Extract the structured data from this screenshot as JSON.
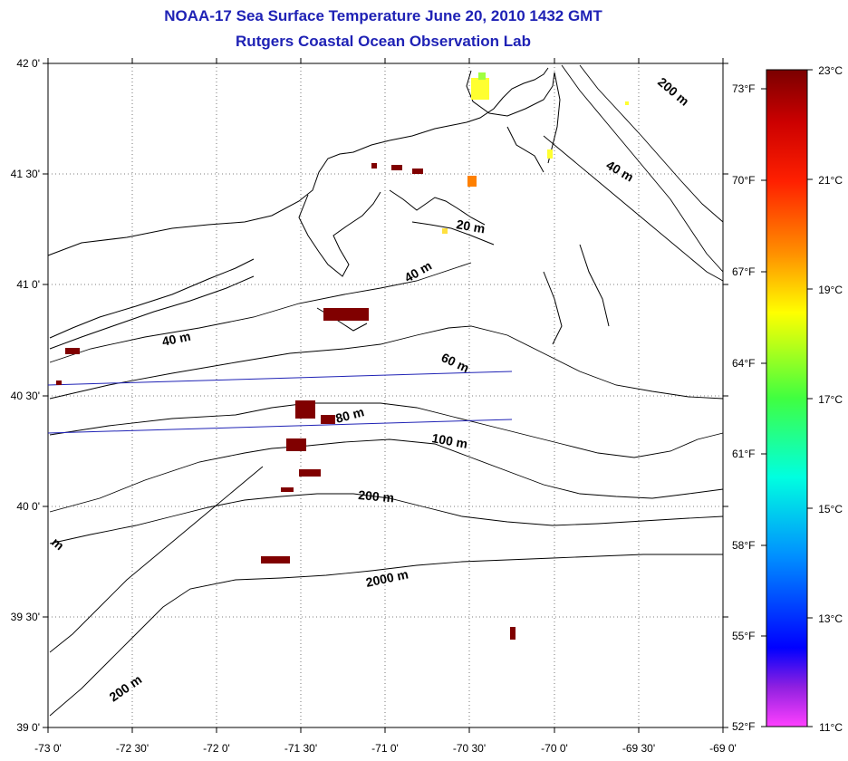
{
  "header": {
    "title": "NOAA-17 Sea Surface Temperature June 20, 2010 1432 GMT",
    "subtitle": "Rutgers Coastal Ocean Observation Lab"
  },
  "map": {
    "lat_labels": [
      "42 0'",
      "41 30'",
      "41 0'",
      "40 30'",
      "40 0'",
      "39 30'",
      "39 0'"
    ],
    "lon_labels": [
      "-73 0'",
      "-72 30'",
      "-72 0'",
      "-71 30'",
      "-71 0'",
      "-70 30'",
      "-70 0'",
      "-69 30'",
      "-69 0'"
    ],
    "contour_labels": {
      "c200_ne": "200 m",
      "c40_ne": "40 m",
      "c20": "20 m",
      "c40_mid": "40 m",
      "c40_west": "40 m",
      "c60": "60 m",
      "c80": "80 m",
      "c100": "100 m",
      "c200_mid": "200 m",
      "c2000": "2000 m",
      "c200_sw": "200 m",
      "c_edge": "m"
    }
  },
  "colorbar": {
    "f_labels": [
      "73°F",
      "70°F",
      "67°F",
      "64°F",
      "61°F",
      "58°F",
      "55°F",
      "52°F"
    ],
    "c_labels": [
      "23°C",
      "21°C",
      "19°C",
      "17°C",
      "15°C",
      "13°C",
      "11°C"
    ],
    "colors": [
      "#800000",
      "#ff0000",
      "#ff8000",
      "#ffff00",
      "#00ff00",
      "#00ffff",
      "#0080ff",
      "#0000ff",
      "#8000ff",
      "#ff40ff"
    ]
  }
}
